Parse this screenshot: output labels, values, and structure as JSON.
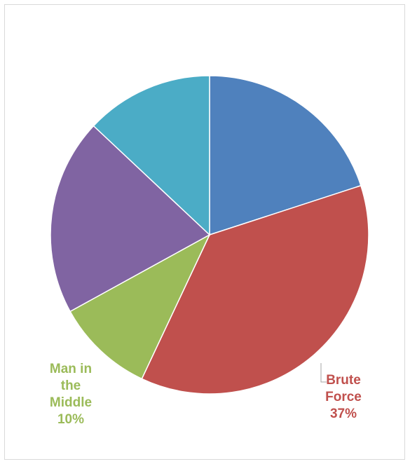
{
  "chart_data": {
    "type": "pie",
    "title": "",
    "start_angle_deg": 0,
    "direction": "clockwise",
    "slices": [
      {
        "label": "",
        "percent": 20,
        "color": "#4F81BD",
        "show_label": false
      },
      {
        "label": "Brute Force",
        "label_lines": [
          "Brute",
          "Force"
        ],
        "percent": 37,
        "percent_text": "37%",
        "color": "#C0504D",
        "show_label": true,
        "label_color": "#C0504D"
      },
      {
        "label": "Man in the Middle",
        "label_lines": [
          "Man in",
          "the",
          "Middle"
        ],
        "percent": 10,
        "percent_text": "10%",
        "color": "#9BBB59",
        "show_label": true,
        "label_color": "#9BBB59"
      },
      {
        "label": "",
        "percent": 20,
        "color": "#8064A2",
        "show_label": false
      },
      {
        "label": "",
        "percent": 13,
        "color": "#4BACC6",
        "show_label": false
      }
    ],
    "legend": "none"
  }
}
